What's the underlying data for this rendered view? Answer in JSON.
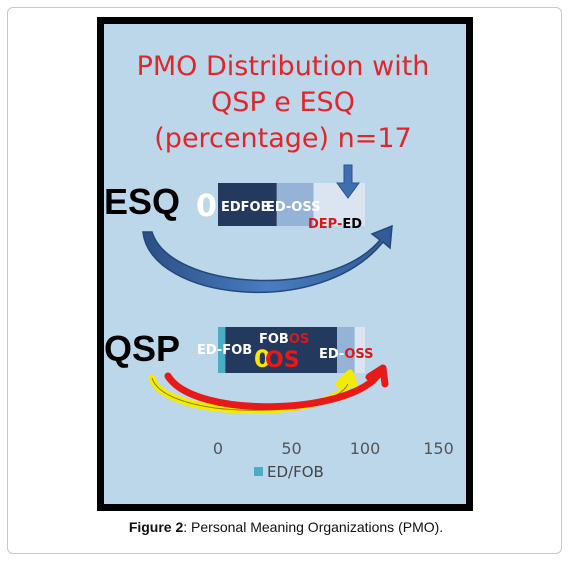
{
  "caption": {
    "label": "Figure 2",
    "text": ": Personal Meaning Organizations (PMO)."
  },
  "chart_data": {
    "type": "bar",
    "orientation": "horizontal",
    "stacked": true,
    "title": "PMO Distribution with QSP e ESQ (percentage) n=17",
    "title_lines": [
      "PMO Distribution with",
      "QSP e ESQ",
      "(percentage) n=17"
    ],
    "categories": [
      "ESQ",
      "QSP"
    ],
    "series": [
      {
        "name": "ED/FOB",
        "values": [
          0,
          5
        ],
        "color": "#4bacc6"
      },
      {
        "values": [
          40,
          76
        ],
        "color": "#23395d"
      },
      {
        "values": [
          25,
          12
        ],
        "color": "#95b3d7"
      },
      {
        "values": [
          35,
          7
        ],
        "color": "#dbe5f1"
      }
    ],
    "xlim": [
      0,
      150
    ],
    "xticks": [
      0,
      50,
      100,
      150
    ],
    "legend": {
      "position": "bottom",
      "entries": [
        "ED/FOB"
      ]
    },
    "annotations": {
      "esq_zero": "0",
      "esq_edfob": "EDFOB",
      "esq_edoss": "ED-OSS",
      "esq_dep": "DEP-",
      "esq_ed": "ED",
      "qsp_edfob": "ED-FOB",
      "qsp_fob": "FOB",
      "qsp_os": "OS",
      "qsp_zero_yellow": "0",
      "qsp_os2": "OS",
      "qsp_edoss_prefix": "ED-",
      "qsp_edoss_suffix": "OSS"
    },
    "colors": {
      "title": "#e0262b",
      "arrow": "#3e6fb0",
      "red_arrow": "#e81919",
      "yellow_arrow": "#f5eb00"
    }
  }
}
